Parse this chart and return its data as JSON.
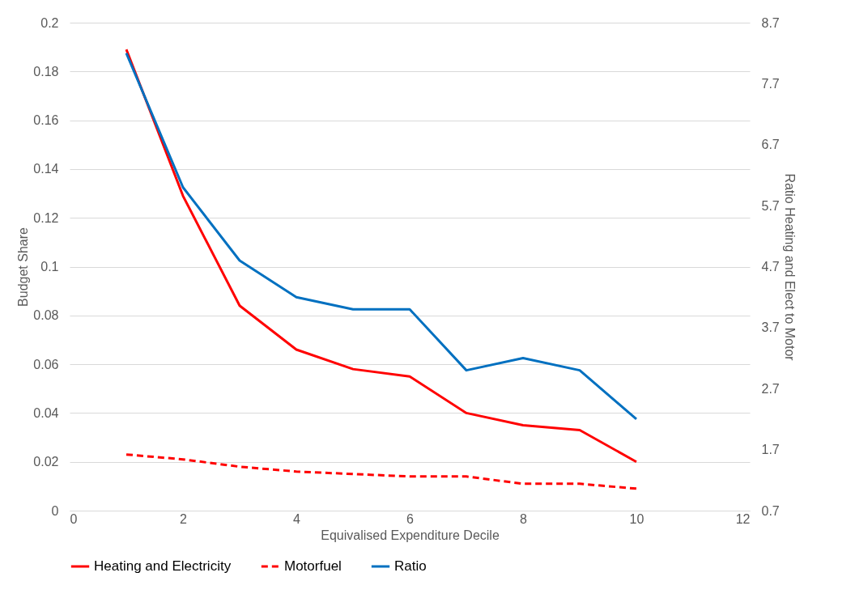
{
  "chart_data": {
    "type": "line",
    "xlabel": "Equivalised Expenditure Decile",
    "ylabel": "Budget Share",
    "y2label": "Ratio Heating and Elect to Motor",
    "x": [
      1,
      2,
      3,
      4,
      5,
      6,
      7,
      8,
      9,
      10
    ],
    "series": [
      {
        "name": "Heating and Electricity",
        "color": "#ff0000",
        "line_style": "solid",
        "values": [
          0.189,
          0.129,
          0.084,
          0.066,
          0.058,
          0.055,
          0.04,
          0.035,
          0.033,
          0.02
        ]
      },
      {
        "name": "Motorfuel",
        "color": "#ff0000",
        "line_style": "dashed",
        "values": [
          0.023,
          0.021,
          0.018,
          0.016,
          0.015,
          0.014,
          0.014,
          0.011,
          0.011,
          0.009
        ]
      },
      {
        "name": "Ratio",
        "color": "#0070c0",
        "line_style": "solid",
        "axis": "y2",
        "values": [
          8.2,
          6.0,
          4.8,
          4.2,
          4.0,
          4.0,
          3.0,
          3.2,
          3.0,
          2.2
        ]
      }
    ],
    "xlim": [
      0,
      12
    ],
    "xticks": [
      0,
      2,
      4,
      6,
      8,
      10,
      12
    ],
    "ylim": [
      0,
      0.2
    ],
    "yticks": [
      0,
      0.02,
      0.04,
      0.06,
      0.08,
      0.1,
      0.12,
      0.14,
      0.16,
      0.18,
      0.2
    ],
    "y2lim": [
      0.7,
      8.7
    ],
    "y2ticks": [
      0.7,
      1.7,
      2.7,
      3.7,
      4.7,
      5.7,
      6.7,
      7.7,
      8.7
    ],
    "grid": "y",
    "legend": "bottom",
    "marker": "none"
  }
}
